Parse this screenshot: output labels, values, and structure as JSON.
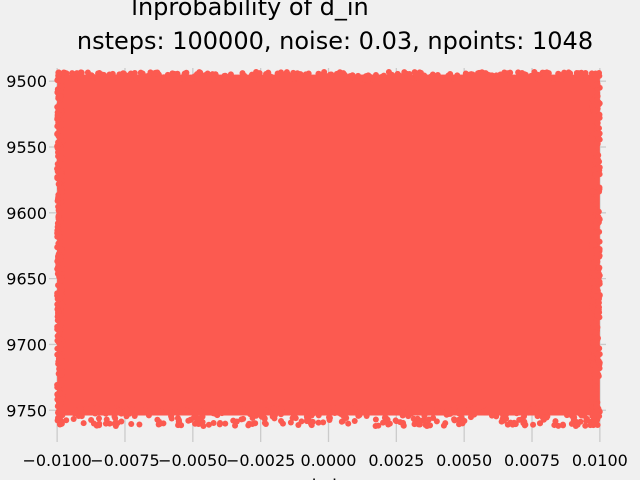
{
  "chart_data": {
    "type": "scatter",
    "title_line1": "lnprobability of d_in",
    "title_line2": "nsteps: 100000, noise: 0.03, npoints: 1048",
    "xlabel": "b_in",
    "xlim": [
      -0.0103,
      0.0103
    ],
    "ylim": [
      9490,
      9765
    ],
    "y_inverted": true,
    "x_ticks": [
      {
        "value": -0.01,
        "label": "−0.0100"
      },
      {
        "value": -0.0075,
        "label": "−0.0075"
      },
      {
        "value": -0.005,
        "label": "−0.0050"
      },
      {
        "value": -0.0025,
        "label": "−0.0025"
      },
      {
        "value": 0.0,
        "label": "0.0000"
      },
      {
        "value": 0.0025,
        "label": "0.0025"
      },
      {
        "value": 0.005,
        "label": "0.0050"
      },
      {
        "value": 0.0075,
        "label": "0.0075"
      },
      {
        "value": 0.01,
        "label": "0.0100"
      }
    ],
    "y_ticks": [
      {
        "value": 9500,
        "label": "9500"
      },
      {
        "value": 9550,
        "label": "9550"
      },
      {
        "value": 9600,
        "label": "9600"
      },
      {
        "value": 9650,
        "label": "9650"
      },
      {
        "value": 9700,
        "label": "9700"
      },
      {
        "value": 9750,
        "label": "9750"
      }
    ],
    "grid": true,
    "marker_color": "#fc5a50",
    "series_extent": {
      "x_range": [
        -0.01,
        0.01
      ],
      "y_range": [
        9493,
        9762
      ]
    }
  }
}
